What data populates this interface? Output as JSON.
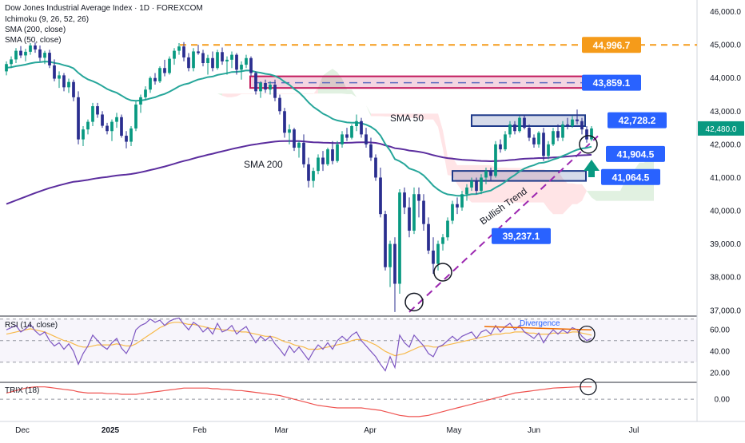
{
  "header": {
    "title": "Dow Jones Industrial Average Index · 1D · FOREXCOM",
    "indicators": [
      "Ichimoku (9, 26, 52, 26)",
      "SMA (200, close)",
      "SMA (50, close)"
    ]
  },
  "chart_data": {
    "type": "candlestick",
    "instrument": "Dow Jones Industrial Average Index",
    "interval": "1D",
    "source": "FOREXCOM",
    "price_axis": {
      "range": [
        36850,
        46350
      ],
      "ticks": [
        {
          "value": 37000,
          "label": "37,000.0"
        },
        {
          "value": 38000,
          "label": "38,000.0"
        },
        {
          "value": 39000,
          "label": "39,000.0"
        },
        {
          "value": 40000,
          "label": "40,000.0"
        },
        {
          "value": 41000,
          "label": "41,000.0"
        },
        {
          "value": 42000,
          "label": "42,000.0"
        },
        {
          "value": 43000,
          "label": "43,000.0"
        },
        {
          "value": 44000,
          "label": "44,000.0"
        },
        {
          "value": 45000,
          "label": "45,000.0"
        },
        {
          "value": 46000,
          "label": "46,000.0"
        }
      ]
    },
    "time_axis": {
      "ticks": [
        {
          "label": "Dec",
          "bold": false
        },
        {
          "label": "2025",
          "bold": true
        },
        {
          "label": "Feb",
          "bold": false
        },
        {
          "label": "Mar",
          "bold": false
        },
        {
          "label": "Apr",
          "bold": false
        },
        {
          "label": "May",
          "bold": false
        },
        {
          "label": "Jun",
          "bold": false
        },
        {
          "label": "Jul",
          "bold": false
        }
      ]
    },
    "last_price": {
      "value": 42480,
      "label": "42,480.0",
      "color": "#089981"
    },
    "levels": [
      {
        "value": 44996.7,
        "label": "44,996.7",
        "style": "dashed",
        "color": "#f59b1a"
      },
      {
        "value": 43859.1,
        "label": "43,859.1",
        "color": "#2962ff"
      },
      {
        "value": 42728.2,
        "label": "42,728.2",
        "color": "#2962ff"
      },
      {
        "value": 41904.5,
        "label": "41,904.5",
        "color": "#2962ff"
      },
      {
        "value": 41064.5,
        "label": "41,064.5",
        "color": "#2962ff"
      },
      {
        "value": 39237.1,
        "label": "39,237.1",
        "color": "#2962ff"
      }
    ],
    "zones": [
      {
        "top": 44050,
        "bottom": 43700,
        "color": "#c2185b"
      },
      {
        "top": 42880,
        "bottom": 42550,
        "color": "#1e3a8a"
      },
      {
        "top": 41200,
        "bottom": 40900,
        "color": "#1e3a8a"
      }
    ],
    "annotations": {
      "sma50": "SMA 50",
      "sma200": "SMA 200",
      "trend": "Bullish Trend",
      "divergence": "Divergence"
    },
    "colors": {
      "up": "#089981",
      "down": "#2a2e8f",
      "sma50": "#26a69a",
      "sma200": "#5b2d9e",
      "cloud_bull": "#c8e6c9",
      "cloud_bear": "#ffcdd2",
      "trend": "#9c27b0"
    },
    "candles": [
      [
        44200,
        44500,
        44080,
        44420
      ],
      [
        44420,
        44650,
        44300,
        44560
      ],
      [
        44560,
        44900,
        44450,
        44820
      ],
      [
        44820,
        44960,
        44600,
        44680
      ],
      [
        44680,
        44880,
        44500,
        44790
      ],
      [
        44790,
        45050,
        44700,
        44980
      ],
      [
        44980,
        45070,
        44760,
        44860
      ],
      [
        44860,
        44980,
        44500,
        44610
      ],
      [
        44610,
        44820,
        44420,
        44760
      ],
      [
        44760,
        44850,
        44300,
        44380
      ],
      [
        44380,
        44560,
        43900,
        43980
      ],
      [
        43980,
        44200,
        43700,
        44080
      ],
      [
        44080,
        44150,
        43600,
        43720
      ],
      [
        43720,
        43980,
        43550,
        43880
      ],
      [
        43880,
        43950,
        43300,
        43420
      ],
      [
        43420,
        43600,
        42000,
        42150
      ],
      [
        42150,
        42550,
        41950,
        42450
      ],
      [
        42450,
        42750,
        42300,
        42680
      ],
      [
        42680,
        43250,
        42550,
        43150
      ],
      [
        43150,
        43250,
        42800,
        42900
      ],
      [
        42900,
        43000,
        42500,
        42560
      ],
      [
        42560,
        42650,
        42300,
        42400
      ],
      [
        42400,
        42750,
        42100,
        42680
      ],
      [
        42680,
        42950,
        42500,
        42820
      ],
      [
        42820,
        42900,
        42200,
        42260
      ],
      [
        42260,
        42400,
        41880,
        42080
      ],
      [
        42080,
        42550,
        41950,
        42480
      ],
      [
        42480,
        43300,
        42400,
        43200
      ],
      [
        43200,
        43500,
        42950,
        43420
      ],
      [
        43420,
        43750,
        43350,
        43650
      ],
      [
        43650,
        44050,
        43550,
        44000
      ],
      [
        44000,
        44150,
        43800,
        43900
      ],
      [
        43900,
        44350,
        43850,
        44300
      ],
      [
        44300,
        44550,
        44050,
        44150
      ],
      [
        44150,
        44650,
        44100,
        44580
      ],
      [
        44580,
        44900,
        44400,
        44820
      ],
      [
        44820,
        45050,
        44700,
        44950
      ],
      [
        44950,
        45080,
        44500,
        44620
      ],
      [
        44620,
        44750,
        44200,
        44300
      ],
      [
        44300,
        44900,
        44200,
        44800
      ],
      [
        44800,
        45000,
        44700,
        44750
      ],
      [
        44750,
        44850,
        44350,
        44450
      ],
      [
        44450,
        44700,
        44100,
        44600
      ],
      [
        44600,
        44800,
        44200,
        44300
      ],
      [
        44300,
        44850,
        44250,
        44780
      ],
      [
        44780,
        44920,
        44400,
        44500
      ],
      [
        44500,
        44650,
        44100,
        44550
      ],
      [
        44550,
        44800,
        44300,
        44700
      ],
      [
        44700,
        44750,
        44100,
        44250
      ],
      [
        44250,
        44500,
        43950,
        44400
      ],
      [
        44400,
        44700,
        44300,
        44600
      ],
      [
        44600,
        44650,
        44050,
        44150
      ],
      [
        44150,
        44200,
        43500,
        43600
      ],
      [
        43600,
        43900,
        43400,
        43850
      ],
      [
        43850,
        43950,
        43550,
        43650
      ],
      [
        43650,
        43900,
        43500,
        43800
      ],
      [
        43800,
        43950,
        43300,
        43400
      ],
      [
        43400,
        43500,
        42900,
        43000
      ],
      [
        43000,
        43100,
        42200,
        42350
      ],
      [
        42350,
        42600,
        42000,
        42450
      ],
      [
        42450,
        42500,
        41800,
        41900
      ],
      [
        41900,
        42100,
        41600,
        42050
      ],
      [
        42050,
        42300,
        41300,
        41400
      ],
      [
        41400,
        41600,
        40700,
        40900
      ],
      [
        40900,
        41300,
        40700,
        41200
      ],
      [
        41200,
        41700,
        41100,
        41600
      ],
      [
        41600,
        41800,
        41200,
        41400
      ],
      [
        41400,
        41900,
        41350,
        41850
      ],
      [
        41850,
        42100,
        41400,
        41500
      ],
      [
        41500,
        42100,
        41450,
        42000
      ],
      [
        42000,
        42400,
        41900,
        42300
      ],
      [
        42300,
        42500,
        42100,
        42200
      ],
      [
        42200,
        42600,
        42150,
        42550
      ],
      [
        42550,
        42900,
        42400,
        42700
      ],
      [
        42700,
        42800,
        42200,
        42300
      ],
      [
        42300,
        42500,
        41900,
        42000
      ],
      [
        42000,
        42200,
        41500,
        41600
      ],
      [
        41600,
        41700,
        40900,
        41000
      ],
      [
        41000,
        41300,
        39800,
        39900
      ],
      [
        39900,
        40000,
        38200,
        38300
      ],
      [
        38300,
        39100,
        37700,
        39000
      ],
      [
        39000,
        39200,
        36950,
        37800
      ],
      [
        37800,
        40650,
        37500,
        40550
      ],
      [
        40550,
        40700,
        39900,
        40100
      ],
      [
        40100,
        40400,
        39200,
        39400
      ],
      [
        39400,
        40700,
        39300,
        40500
      ],
      [
        40500,
        40700,
        39800,
        40300
      ],
      [
        40300,
        40500,
        39400,
        39600
      ],
      [
        39600,
        39800,
        38700,
        38800
      ],
      [
        38800,
        39200,
        38100,
        38400
      ],
      [
        38400,
        39100,
        38200,
        39000
      ],
      [
        39000,
        39300,
        38800,
        39200
      ],
      [
        39200,
        39800,
        39100,
        39700
      ],
      [
        39700,
        40300,
        39600,
        40200
      ],
      [
        40200,
        40400,
        39900,
        40100
      ],
      [
        40100,
        40600,
        40000,
        40500
      ],
      [
        40500,
        40800,
        40300,
        40700
      ],
      [
        40700,
        41000,
        40600,
        40900
      ],
      [
        40900,
        41000,
        40500,
        40600
      ],
      [
        40600,
        41100,
        40500,
        41000
      ],
      [
        41000,
        41300,
        40800,
        41200
      ],
      [
        41200,
        41300,
        40900,
        41050
      ],
      [
        41050,
        42100,
        41000,
        42000
      ],
      [
        42000,
        42150,
        41750,
        41850
      ],
      [
        41850,
        42400,
        41800,
        42300
      ],
      [
        42300,
        42700,
        42200,
        42600
      ],
      [
        42600,
        42700,
        42300,
        42400
      ],
      [
        42400,
        42850,
        42350,
        42800
      ],
      [
        42800,
        42900,
        42450,
        42500
      ],
      [
        42500,
        42600,
        42100,
        42200
      ],
      [
        42200,
        42300,
        41900,
        42000
      ],
      [
        42000,
        42400,
        41900,
        42350
      ],
      [
        42350,
        42500,
        41500,
        41650
      ],
      [
        41650,
        42100,
        41550,
        42000
      ],
      [
        42000,
        42500,
        41950,
        42400
      ],
      [
        42400,
        42600,
        42100,
        42200
      ],
      [
        42200,
        42700,
        42100,
        42600
      ],
      [
        42600,
        42800,
        42450,
        42550
      ],
      [
        42550,
        42850,
        42500,
        42750
      ],
      [
        42750,
        43050,
        42600,
        42700
      ],
      [
        42700,
        42800,
        42300,
        42450
      ],
      [
        42450,
        42550,
        42050,
        42150
      ],
      [
        42150,
        42550,
        42100,
        42480
      ]
    ],
    "rsi": {
      "label": "RSI (14, close)",
      "range": [
        0,
        100
      ],
      "visible_range": [
        12,
        72
      ],
      "ticks": [
        {
          "value": 20,
          "label": "20.00"
        },
        {
          "value": 40,
          "label": "40.00"
        },
        {
          "value": 60,
          "label": "60.00"
        }
      ],
      "bands": [
        30,
        50,
        70
      ],
      "values": [
        60,
        62,
        64,
        58,
        61,
        65,
        59,
        55,
        58,
        50,
        45,
        48,
        42,
        47,
        40,
        28,
        38,
        45,
        55,
        50,
        45,
        42,
        48,
        52,
        43,
        38,
        46,
        60,
        64,
        66,
        70,
        67,
        69,
        64,
        68,
        70,
        71,
        65,
        60,
        67,
        64,
        58,
        62,
        56,
        66,
        58,
        60,
        64,
        56,
        60,
        63,
        55,
        48,
        54,
        50,
        54,
        47,
        42,
        36,
        45,
        39,
        44,
        38,
        32,
        40,
        46,
        42,
        48,
        42,
        50,
        54,
        50,
        55,
        58,
        50,
        45,
        40,
        35,
        28,
        22,
        35,
        25,
        55,
        48,
        44,
        55,
        50,
        45,
        38,
        35,
        44,
        46,
        50,
        54,
        50,
        54,
        56,
        58,
        52,
        58,
        60,
        56,
        64,
        58,
        63,
        66,
        60,
        64,
        58,
        55,
        52,
        57,
        48,
        55,
        60,
        56,
        60,
        57,
        62,
        60,
        54,
        50,
        52
      ],
      "ma_values": [
        56,
        57,
        58,
        59,
        60,
        61,
        60,
        59,
        58,
        56,
        54,
        52,
        50,
        49,
        47,
        45,
        44,
        44,
        45,
        46,
        46,
        46,
        46,
        47,
        46,
        45,
        45,
        47,
        50,
        53,
        56,
        59,
        62,
        64,
        66,
        67,
        67,
        66,
        65,
        65,
        64,
        63,
        62,
        61,
        61,
        60,
        60,
        59,
        59,
        58,
        58,
        57,
        56,
        55,
        54,
        54,
        53,
        51,
        49,
        48,
        46,
        45,
        44,
        42,
        42,
        42,
        43,
        44,
        45,
        46,
        47,
        48,
        50,
        51,
        51,
        50,
        48,
        46,
        43,
        40,
        38,
        36,
        37,
        38,
        40,
        42,
        44,
        45,
        45,
        44,
        44,
        45,
        46,
        47,
        48,
        49,
        50,
        51,
        52,
        53,
        54,
        55,
        56,
        56,
        57,
        57,
        58,
        58,
        58,
        57,
        57,
        56,
        56,
        56,
        57,
        57,
        57,
        57,
        58,
        58,
        57,
        56,
        55
      ]
    },
    "trix": {
      "label": "TRIX (18)",
      "tick": {
        "value": 0,
        "label": "0.00"
      },
      "values": [
        0.05,
        0.06,
        0.07,
        0.08,
        0.09,
        0.095,
        0.1,
        0.1,
        0.1,
        0.095,
        0.09,
        0.085,
        0.08,
        0.075,
        0.07,
        0.06,
        0.055,
        0.05,
        0.05,
        0.05,
        0.05,
        0.045,
        0.045,
        0.045,
        0.04,
        0.04,
        0.04,
        0.04,
        0.045,
        0.05,
        0.055,
        0.06,
        0.065,
        0.07,
        0.075,
        0.08,
        0.085,
        0.09,
        0.09,
        0.09,
        0.09,
        0.09,
        0.09,
        0.085,
        0.085,
        0.08,
        0.08,
        0.075,
        0.07,
        0.07,
        0.065,
        0.06,
        0.055,
        0.05,
        0.045,
        0.04,
        0.035,
        0.03,
        0.02,
        0.01,
        0.0,
        -0.01,
        -0.02,
        -0.03,
        -0.04,
        -0.05,
        -0.055,
        -0.06,
        -0.065,
        -0.07,
        -0.07,
        -0.07,
        -0.07,
        -0.07,
        -0.07,
        -0.075,
        -0.08,
        -0.085,
        -0.09,
        -0.1,
        -0.11,
        -0.12,
        -0.13,
        -0.135,
        -0.14,
        -0.14,
        -0.14,
        -0.135,
        -0.13,
        -0.12,
        -0.11,
        -0.1,
        -0.09,
        -0.08,
        -0.07,
        -0.06,
        -0.05,
        -0.04,
        -0.03,
        -0.02,
        -0.01,
        0.0,
        0.01,
        0.02,
        0.03,
        0.04,
        0.05,
        0.055,
        0.06,
        0.065,
        0.07,
        0.075,
        0.08,
        0.085,
        0.09,
        0.092,
        0.094,
        0.096,
        0.098,
        0.1,
        0.1,
        0.1,
        0.1
      ]
    }
  }
}
